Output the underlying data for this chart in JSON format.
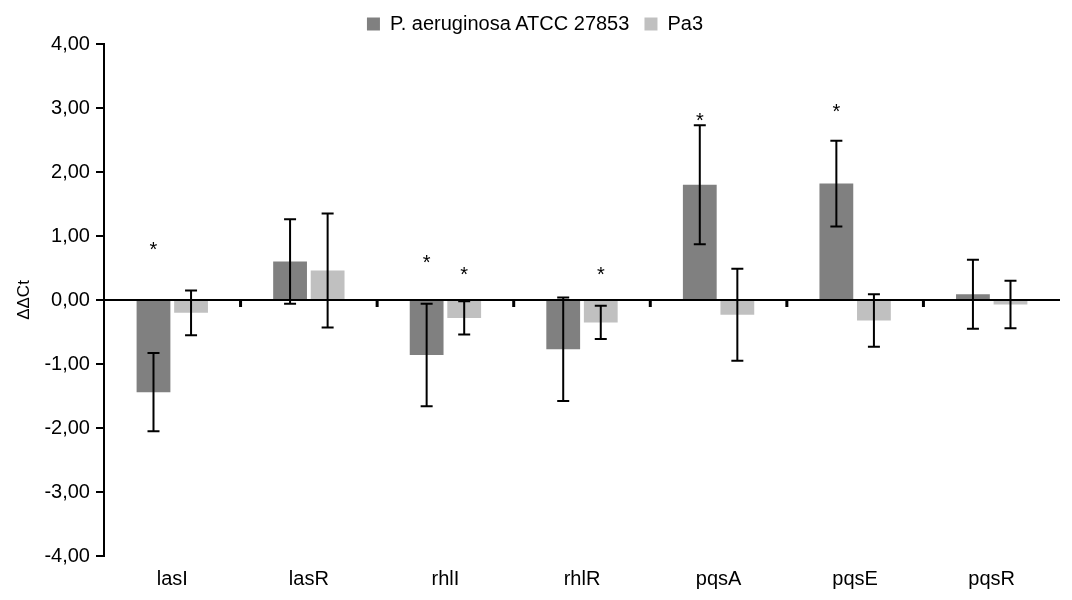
{
  "chart_data": {
    "type": "bar",
    "ylabel": "ΔΔCt",
    "categories": [
      "lasI",
      "lasR",
      "rhlI",
      "rhlR",
      "pqsA",
      "pqsE",
      "pqsR"
    ],
    "series": [
      {
        "name": "P. aeruginosa ATCC 27853",
        "color": "#808080",
        "values": [
          -1.44,
          0.6,
          -0.86,
          -0.77,
          1.8,
          1.82,
          0.09
        ],
        "errors": [
          0.61,
          0.66,
          0.8,
          0.81,
          0.93,
          0.67,
          0.54
        ]
      },
      {
        "name": "Pa3",
        "color": "#c0c0c0",
        "values": [
          -0.2,
          0.46,
          -0.28,
          -0.35,
          -0.23,
          -0.32,
          -0.07
        ],
        "errors": [
          0.35,
          0.89,
          0.26,
          0.26,
          0.72,
          0.41,
          0.37
        ]
      }
    ],
    "ylim": [
      -4,
      4
    ],
    "yticks": [
      {
        "value": -4,
        "label": "-4,00"
      },
      {
        "value": -3,
        "label": "-3,00"
      },
      {
        "value": -2,
        "label": "-2,00"
      },
      {
        "value": -1,
        "label": "-1,00"
      },
      {
        "value": 0,
        "label": "0,00"
      },
      {
        "value": 1,
        "label": "1,00"
      },
      {
        "value": 2,
        "label": "2,00"
      },
      {
        "value": 3,
        "label": "3,00"
      },
      {
        "value": 4,
        "label": "4,00"
      }
    ],
    "annotations": [
      "*",
      "*",
      "*",
      "*",
      "*",
      "*"
    ],
    "ref_lines": [
      {
        "axis": "y",
        "value": 0,
        "color": "#000000"
      }
    ],
    "grid": false,
    "legend": "top"
  }
}
